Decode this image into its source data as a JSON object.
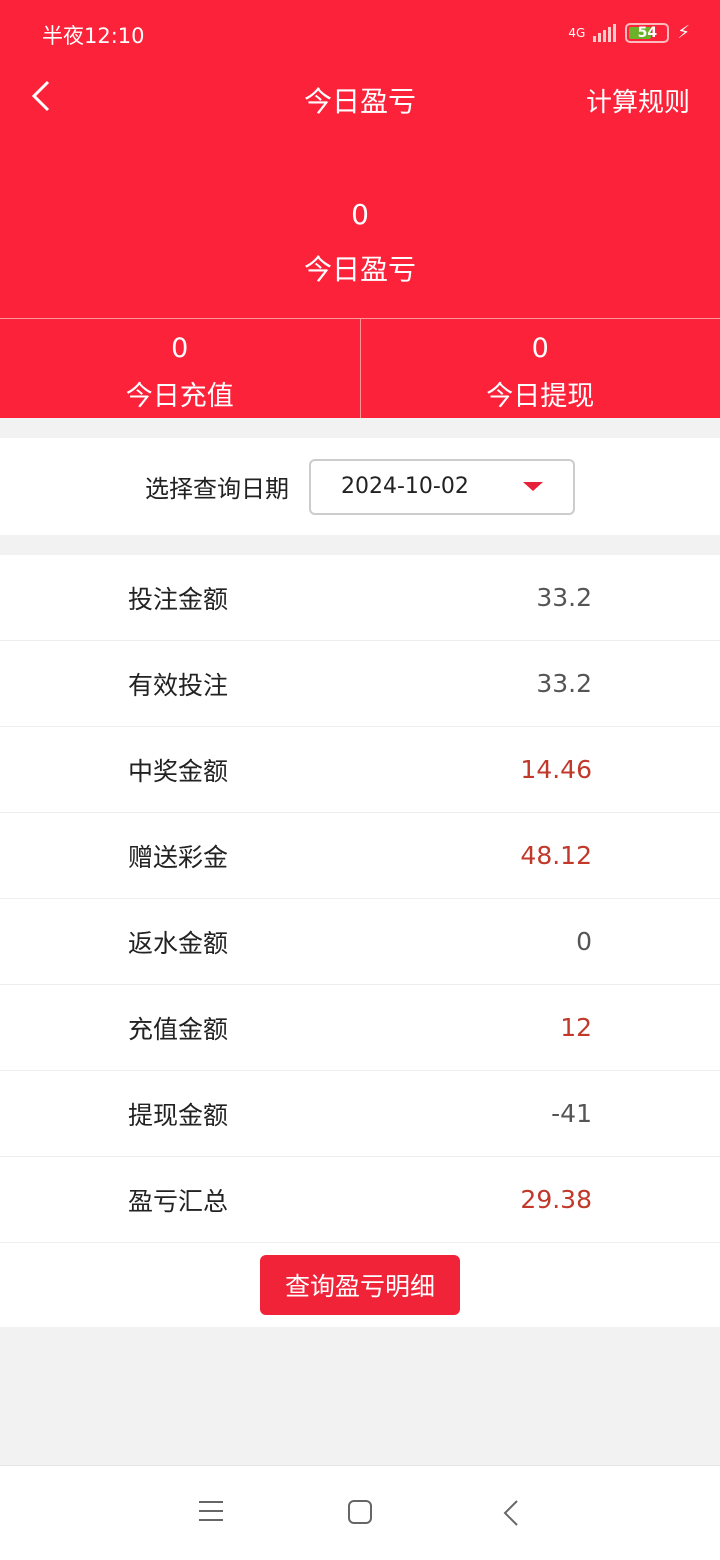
{
  "status_bar": {
    "time": "半夜12:10",
    "network": "4G",
    "battery": "54"
  },
  "header": {
    "title": "今日盈亏",
    "rules_label": "计算规则"
  },
  "summary": {
    "value": "0",
    "label": "今日盈亏"
  },
  "stats": [
    {
      "value": "0",
      "label": "今日充值"
    },
    {
      "value": "0",
      "label": "今日提现"
    }
  ],
  "date_filter": {
    "label": "选择查询日期",
    "value": "2024-10-02"
  },
  "rows": [
    {
      "label": "投注金额",
      "value": "33.2",
      "highlight": false
    },
    {
      "label": "有效投注",
      "value": "33.2",
      "highlight": false
    },
    {
      "label": "中奖金额",
      "value": "14.46",
      "highlight": true
    },
    {
      "label": "赠送彩金",
      "value": "48.12",
      "highlight": true
    },
    {
      "label": "返水金额",
      "value": "0",
      "highlight": false
    },
    {
      "label": "充值金额",
      "value": "12",
      "highlight": true
    },
    {
      "label": "提现金额",
      "value": "-41",
      "highlight": false
    },
    {
      "label": "盈亏汇总",
      "value": "29.38",
      "highlight": true
    }
  ],
  "detail_button": "查询盈亏明细",
  "colors": {
    "brand": "#fc223a",
    "highlight_value": "#c0392b"
  }
}
